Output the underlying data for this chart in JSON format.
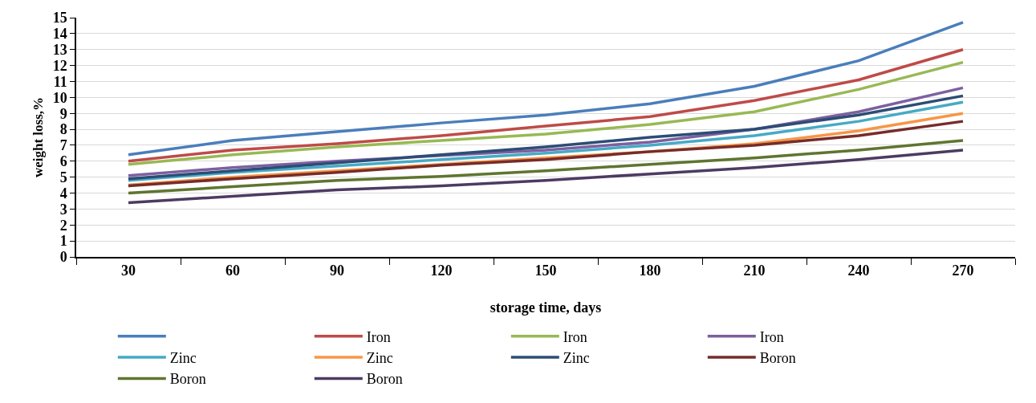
{
  "chart_data": {
    "type": "line",
    "xlabel": "storage time, days",
    "ylabel": "weight loss,%",
    "categories": [
      "30",
      "60",
      "90",
      "120",
      "150",
      "180",
      "210",
      "240",
      "270"
    ],
    "ylim": [
      0,
      15
    ],
    "yticks": [
      0,
      1,
      2,
      3,
      4,
      5,
      6,
      7,
      8,
      9,
      10,
      11,
      12,
      13,
      14,
      15
    ],
    "grid": "y",
    "legend": "bottom",
    "marker": "none",
    "line_style": "solid",
    "series": [
      {
        "color": "#4a7ebb",
        "values": [
          6.4,
          7.3,
          7.85,
          8.4,
          8.9,
          9.6,
          10.7,
          12.3,
          14.7
        ]
      },
      {
        "name": "Iron",
        "color": "#be4b48",
        "values": [
          6.0,
          6.7,
          7.1,
          7.6,
          8.2,
          8.8,
          9.8,
          11.1,
          13.0
        ]
      },
      {
        "name": "Iron",
        "color": "#98b954",
        "values": [
          5.8,
          6.4,
          6.9,
          7.3,
          7.7,
          8.3,
          9.1,
          10.5,
          12.2
        ]
      },
      {
        "name": "Iron",
        "color": "#7d60a0",
        "values": [
          5.1,
          5.6,
          6.0,
          6.35,
          6.7,
          7.2,
          8.0,
          9.1,
          10.6
        ]
      },
      {
        "name": "Zinc",
        "color": "#46aac5",
        "values": [
          4.8,
          5.3,
          5.7,
          6.1,
          6.5,
          7.0,
          7.6,
          8.5,
          9.7
        ]
      },
      {
        "name": "Zinc",
        "color": "#f79646",
        "values": [
          4.5,
          5.0,
          5.4,
          5.8,
          6.2,
          6.6,
          7.1,
          7.9,
          9.0
        ]
      },
      {
        "name": "Zinc",
        "color": "#2c4d75",
        "values": [
          4.9,
          5.4,
          5.9,
          6.4,
          6.9,
          7.5,
          8.0,
          8.9,
          10.1
        ]
      },
      {
        "name": "Boron",
        "color": "#772c2a",
        "values": [
          4.45,
          4.9,
          5.3,
          5.75,
          6.1,
          6.6,
          7.0,
          7.6,
          8.5
        ]
      },
      {
        "name": "Boron",
        "color": "#5f7530",
        "values": [
          4.0,
          4.4,
          4.8,
          5.05,
          5.4,
          5.8,
          6.2,
          6.7,
          7.3
        ]
      },
      {
        "name": "Boron",
        "color": "#4d3b62",
        "values": [
          3.4,
          3.8,
          4.2,
          4.45,
          4.8,
          5.2,
          5.6,
          6.1,
          6.7
        ]
      }
    ]
  }
}
